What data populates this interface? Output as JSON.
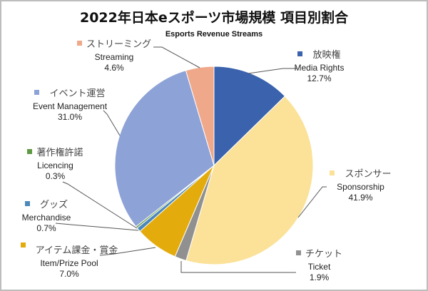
{
  "chart_data": {
    "type": "pie",
    "title": "2022年日本eスポーツ市場規模 項目別割合",
    "subtitle": "Esports Revenue Streams",
    "start_angle_deg": 0,
    "direction": "clockwise",
    "legend_position": "data labels with leader lines",
    "slices": [
      {
        "jp": "放映権",
        "en": "Media Rights",
        "value": 12.7,
        "label": "12.7%",
        "color": "#3A62AD"
      },
      {
        "jp": "スポンサー",
        "en": "Sponsorship",
        "value": 41.9,
        "label": "41.9%",
        "color": "#FBE298"
      },
      {
        "jp": "チケット",
        "en": "Ticket",
        "value": 1.9,
        "label": "1.9%",
        "color": "#909090"
      },
      {
        "jp": "アイテム課金・賞金",
        "en": "Item/Prize Pool",
        "value": 7.0,
        "label": "7.0%",
        "color": "#E3AB0C"
      },
      {
        "jp": "グッズ",
        "en": "Merchandise",
        "value": 0.7,
        "label": "0.7%",
        "color": "#4D88B8"
      },
      {
        "jp": "著作権許諾",
        "en": "Licencing",
        "value": 0.3,
        "label": "0.3%",
        "color": "#5E9A43"
      },
      {
        "jp": "イベント運営",
        "en": "Event Management",
        "value": 31.0,
        "label": "31.0%",
        "color": "#8DA2D6"
      },
      {
        "jp": "ストリーミング",
        "en": "Streaming",
        "value": 4.6,
        "label": "4.6%",
        "color": "#F0A88A"
      }
    ]
  }
}
